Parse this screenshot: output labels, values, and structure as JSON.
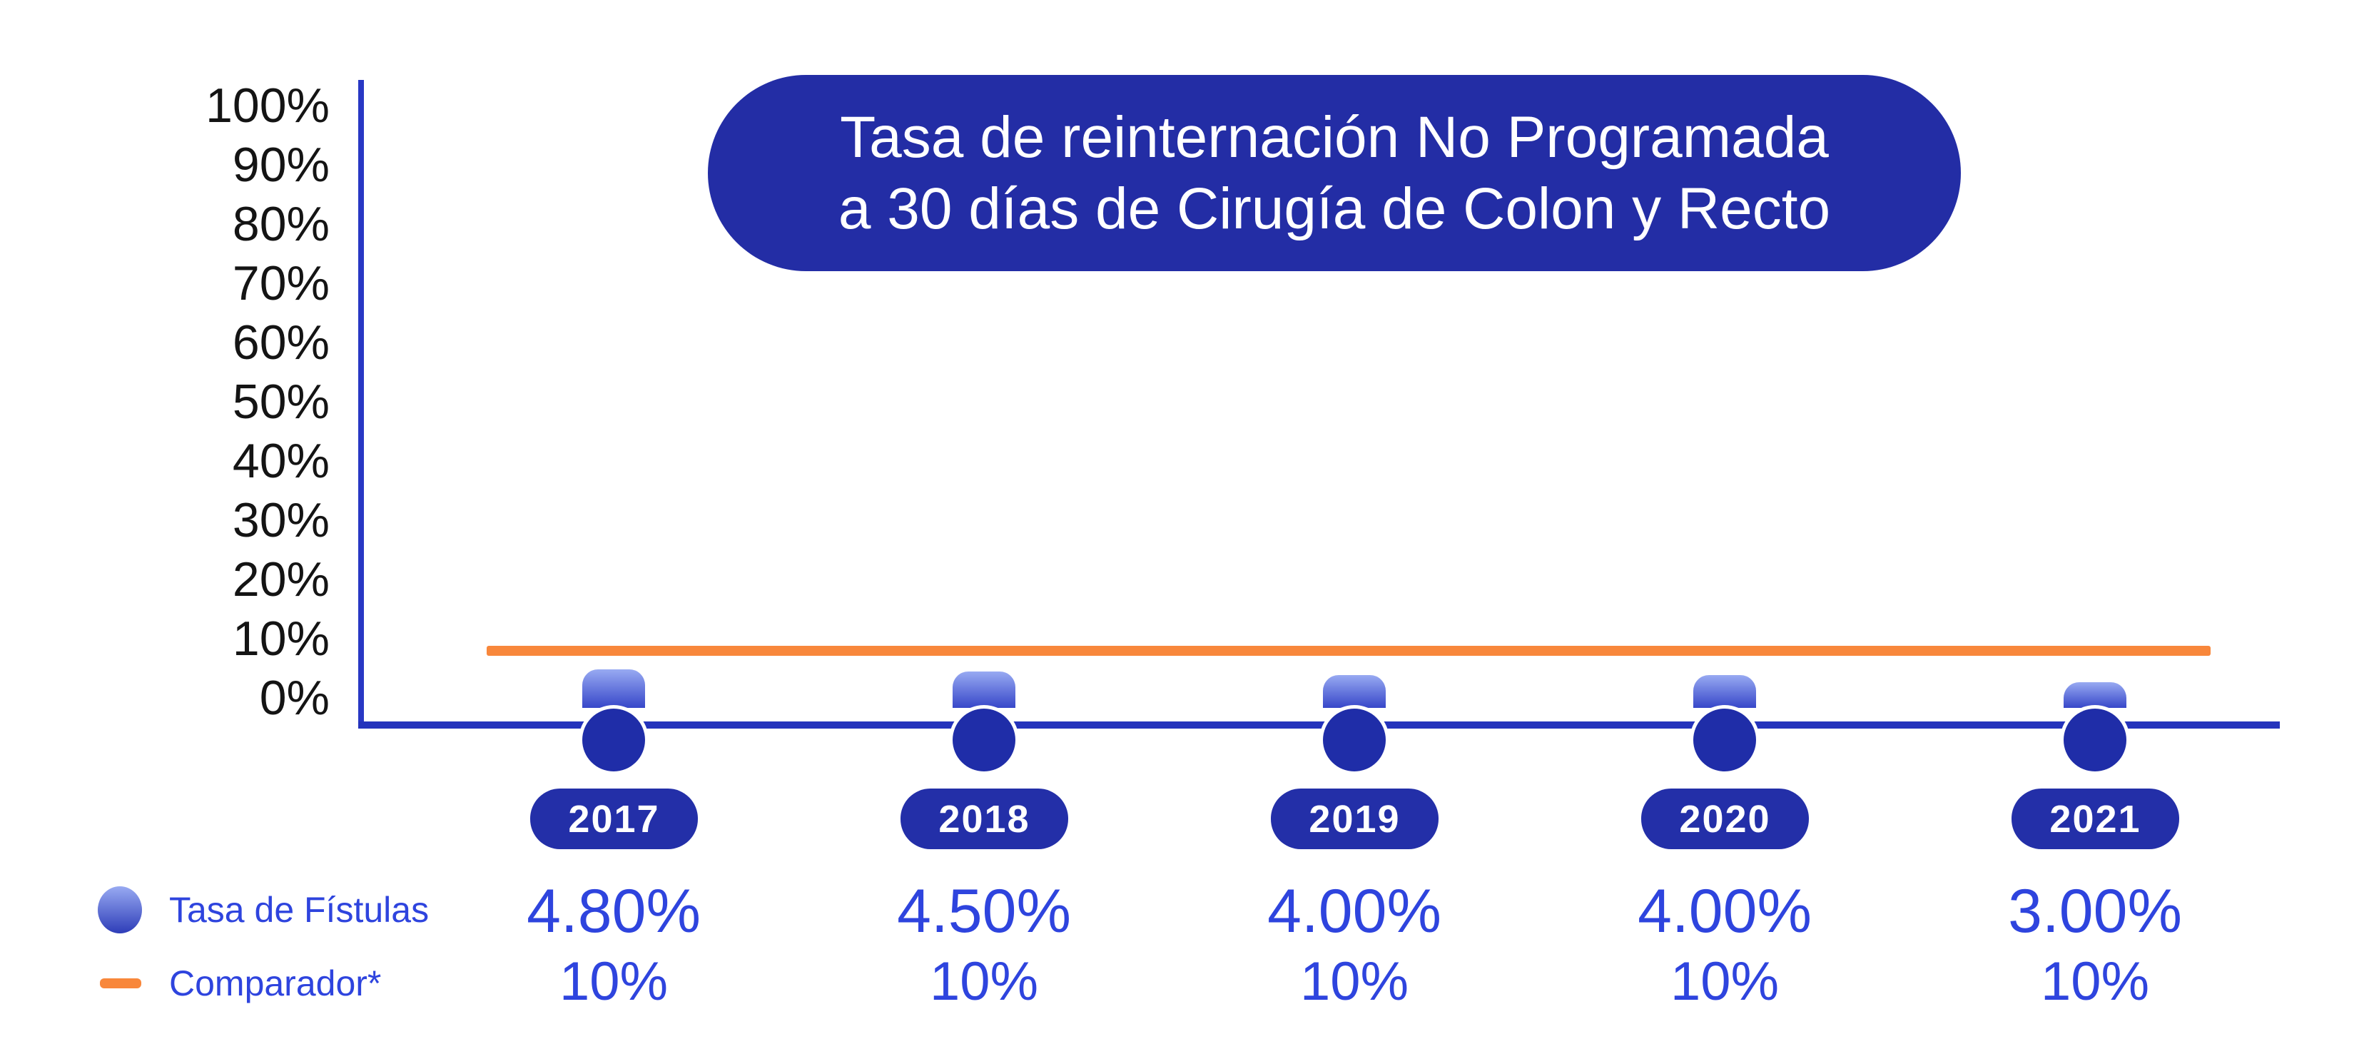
{
  "title": {
    "line1": "Tasa de reinternación No Programada",
    "line2": "a 30 días de Cirugía de Colon y Recto"
  },
  "legend": {
    "series1": "Tasa de Fístulas",
    "series2": "Comparador*"
  },
  "chart_data": {
    "type": "bar",
    "title": "Tasa de reinternación No Programada a 30 días de Cirugía de Colon y Recto",
    "categories": [
      "2017",
      "2018",
      "2019",
      "2020",
      "2021"
    ],
    "series": [
      {
        "name": "Tasa de Fístulas",
        "type": "bar",
        "values": [
          4.8,
          4.5,
          4.0,
          4.0,
          3.0
        ],
        "labels": [
          "4.80%",
          "4.50%",
          "4.00%",
          "4.00%",
          "3.00%"
        ]
      },
      {
        "name": "Comparador*",
        "type": "line",
        "values": [
          10,
          10,
          10,
          10,
          10
        ],
        "labels": [
          "10%",
          "10%",
          "10%",
          "10%",
          "10%"
        ]
      }
    ],
    "xlabel": "",
    "ylabel": "",
    "y_ticks": [
      "100%",
      "90%",
      "80%",
      "70%",
      "60%",
      "50%",
      "40%",
      "30%",
      "20%",
      "10%",
      "0%"
    ],
    "ylim": [
      0,
      100
    ],
    "grid": false,
    "legend_position": "bottom-left"
  },
  "colors": {
    "title_pill_blue": "#232DA5",
    "year_pill_blue": "#232FA8",
    "marker_blue": "#1F2DA8",
    "axis_blue": "#2838C4",
    "bar_gradient_top": "#98AAF2",
    "bar_gradient_bottom": "#3747C9",
    "comparador_orange": "#F8873B",
    "value_text_blue": "#2E44DE",
    "tick_text_black": "#141414",
    "title_text_white": "#FFFFFF"
  }
}
